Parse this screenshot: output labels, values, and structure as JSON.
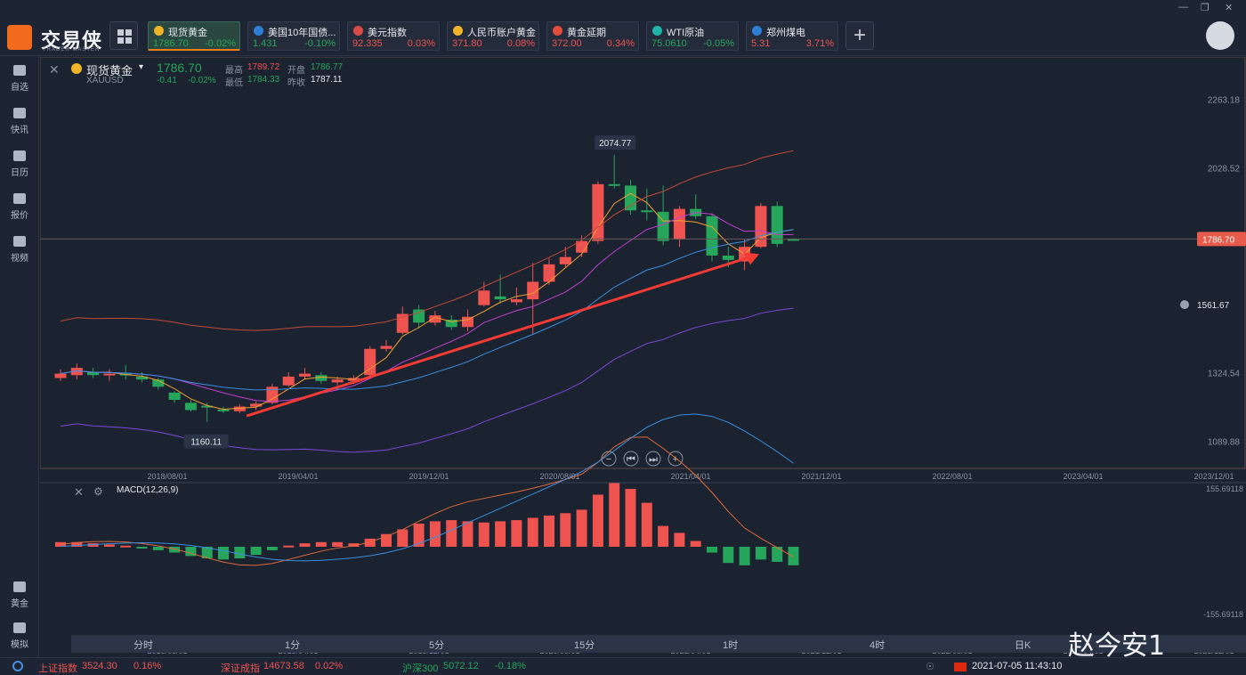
{
  "app": {
    "logo_text": "交易侠",
    "logo_sub": "TRADER MASTER"
  },
  "tabs": [
    {
      "name": "现货黄金",
      "price": "1786.70",
      "change": "-0.02%",
      "price_color": "#26a65b",
      "change_color": "#26a65b",
      "icon_color": "#f0b429",
      "active": true
    },
    {
      "name": "美国10年国债...",
      "price": "1.431",
      "change": "-0.10%",
      "price_color": "#26a65b",
      "change_color": "#26a65b",
      "icon_color": "#2f7fd6"
    },
    {
      "name": "美元指数",
      "price": "92.335",
      "change": "0.03%",
      "price_color": "#ef5350",
      "change_color": "#ef5350",
      "icon_color": "#d94a4a"
    },
    {
      "name": "人民币账户黄金",
      "price": "371.80",
      "change": "0.08%",
      "price_color": "#ef5350",
      "change_color": "#ef5350",
      "icon_color": "#f0b429"
    },
    {
      "name": "黄金延期",
      "price": "372.00",
      "change": "0.34%",
      "price_color": "#ef5350",
      "change_color": "#ef5350",
      "icon_color": "#e24d3d"
    },
    {
      "name": "WTI原油",
      "price": "75.0610",
      "change": "-0.05%",
      "price_color": "#26a65b",
      "change_color": "#26a65b",
      "icon_color": "#1fb5a8"
    },
    {
      "name": "郑州煤电",
      "price": "5.31",
      "change": "3.71%",
      "price_color": "#ef5350",
      "change_color": "#ef5350",
      "icon_color": "#2f7fd6"
    }
  ],
  "sidebar": {
    "items": [
      "自选",
      "快讯",
      "日历",
      "报价",
      "视频"
    ],
    "bottom": [
      "黄金",
      "模拟"
    ]
  },
  "instrument": {
    "name": "现货黄金",
    "code": "XAUUSD",
    "price": "1786.70",
    "change": "-0.41",
    "change_pct": "-0.02%",
    "high_label": "最高",
    "high": "1789.72",
    "open_label": "开盘",
    "open": "1786.77",
    "low_label": "最低",
    "low": "1784.33",
    "prev_label": "昨收",
    "prev": "1787.11"
  },
  "annotations": {
    "peak": "2074.77",
    "trough": "1160.11",
    "current_price": "1786.70",
    "alert_price": "1561.67"
  },
  "macd_label": "MACD(12,26,9)",
  "macd_axis": {
    "top": "155.69118",
    "bottom": "-155.69118"
  },
  "periods": [
    "分时",
    "1分",
    "5分",
    "15分",
    "1时",
    "4时",
    "日K"
  ],
  "status": {
    "sh_label": "上证指数",
    "sh_value": "3524.30",
    "sh_change": "0.16%",
    "sz_label": "深证成指",
    "sz_value": "14673.58",
    "sz_change": "0.02%",
    "hs_label": "沪深300",
    "hs_value": "5072.12",
    "hs_change": "-0.18%",
    "datetime": "2021-07-05 11:43:10"
  },
  "watermark": "赵今安1",
  "chart_data": {
    "type": "candlestick",
    "x_tick_labels": [
      "2018/08/01",
      "2019/04/01",
      "2019/12/01",
      "2020/08/01",
      "2021/04/01",
      "2021/12/01",
      "2022/08/01",
      "2023/04/01",
      "2023/12/01"
    ],
    "y_tick_labels": [
      "2263.18",
      "2028.52",
      "1324.54",
      "1089.88"
    ],
    "ylim": [
      1000,
      2350
    ],
    "candles": [
      {
        "o": 1310,
        "c": 1325,
        "h": 1340,
        "l": 1300
      },
      {
        "o": 1320,
        "c": 1345,
        "h": 1360,
        "l": 1305
      },
      {
        "o": 1330,
        "c": 1320,
        "h": 1345,
        "l": 1310
      },
      {
        "o": 1320,
        "c": 1325,
        "h": 1340,
        "l": 1300
      },
      {
        "o": 1325,
        "c": 1320,
        "h": 1355,
        "l": 1305
      },
      {
        "o": 1315,
        "c": 1305,
        "h": 1330,
        "l": 1295
      },
      {
        "o": 1305,
        "c": 1280,
        "h": 1310,
        "l": 1270
      },
      {
        "o": 1260,
        "c": 1235,
        "h": 1265,
        "l": 1225
      },
      {
        "o": 1225,
        "c": 1200,
        "h": 1235,
        "l": 1195
      },
      {
        "o": 1215,
        "c": 1212,
        "h": 1225,
        "l": 1160
      },
      {
        "o": 1202,
        "c": 1196,
        "h": 1212,
        "l": 1190
      },
      {
        "o": 1196,
        "c": 1212,
        "h": 1220,
        "l": 1190
      },
      {
        "o": 1212,
        "c": 1222,
        "h": 1230,
        "l": 1200
      },
      {
        "o": 1225,
        "c": 1280,
        "h": 1290,
        "l": 1220
      },
      {
        "o": 1285,
        "c": 1315,
        "h": 1330,
        "l": 1280
      },
      {
        "o": 1315,
        "c": 1325,
        "h": 1345,
        "l": 1305
      },
      {
        "o": 1320,
        "c": 1300,
        "h": 1330,
        "l": 1290
      },
      {
        "o": 1295,
        "c": 1305,
        "h": 1315,
        "l": 1285
      },
      {
        "o": 1300,
        "c": 1310,
        "h": 1320,
        "l": 1290
      },
      {
        "o": 1320,
        "c": 1410,
        "h": 1420,
        "l": 1315
      },
      {
        "o": 1410,
        "c": 1420,
        "h": 1440,
        "l": 1400
      },
      {
        "o": 1465,
        "c": 1530,
        "h": 1555,
        "l": 1460
      },
      {
        "o": 1545,
        "c": 1500,
        "h": 1560,
        "l": 1480
      },
      {
        "o": 1500,
        "c": 1525,
        "h": 1540,
        "l": 1490
      },
      {
        "o": 1510,
        "c": 1485,
        "h": 1525,
        "l": 1475
      },
      {
        "o": 1485,
        "c": 1520,
        "h": 1545,
        "l": 1470
      },
      {
        "o": 1560,
        "c": 1610,
        "h": 1640,
        "l": 1555
      },
      {
        "o": 1590,
        "c": 1580,
        "h": 1665,
        "l": 1565
      },
      {
        "o": 1570,
        "c": 1580,
        "h": 1620,
        "l": 1560
      },
      {
        "o": 1580,
        "c": 1640,
        "h": 1705,
        "l": 1460
      },
      {
        "o": 1640,
        "c": 1700,
        "h": 1720,
        "l": 1630
      },
      {
        "o": 1700,
        "c": 1725,
        "h": 1760,
        "l": 1690
      },
      {
        "o": 1740,
        "c": 1780,
        "h": 1800,
        "l": 1725
      },
      {
        "o": 1780,
        "c": 1975,
        "h": 1985,
        "l": 1770
      },
      {
        "o": 1975,
        "c": 1970,
        "h": 2074.77,
        "l": 1960
      },
      {
        "o": 1970,
        "c": 1885,
        "h": 1990,
        "l": 1870
      },
      {
        "o": 1885,
        "c": 1880,
        "h": 1960,
        "l": 1850
      },
      {
        "o": 1880,
        "c": 1780,
        "h": 1970,
        "l": 1765
      },
      {
        "o": 1785,
        "c": 1890,
        "h": 1900,
        "l": 1760
      },
      {
        "o": 1890,
        "c": 1865,
        "h": 1940,
        "l": 1855
      },
      {
        "o": 1865,
        "c": 1730,
        "h": 1875,
        "l": 1710
      },
      {
        "o": 1730,
        "c": 1715,
        "h": 1760,
        "l": 1690
      },
      {
        "o": 1710,
        "c": 1760,
        "h": 1785,
        "l": 1680
      },
      {
        "o": 1760,
        "c": 1900,
        "h": 1910,
        "l": 1755
      },
      {
        "o": 1900,
        "c": 1770,
        "h": 1915,
        "l": 1760
      },
      {
        "o": 1786.77,
        "c": 1786.7,
        "h": 1789.72,
        "l": 1784.33
      }
    ],
    "macd_hist": [
      8,
      8,
      6,
      4,
      2,
      -2,
      -6,
      -10,
      -16,
      -20,
      -22,
      -20,
      -14,
      -6,
      2,
      6,
      8,
      8,
      6,
      14,
      22,
      30,
      40,
      44,
      46,
      44,
      42,
      44,
      46,
      50,
      54,
      58,
      64,
      90,
      110,
      100,
      76,
      36,
      24,
      10,
      -10,
      -28,
      -32,
      -22,
      -26,
      -32
    ]
  }
}
